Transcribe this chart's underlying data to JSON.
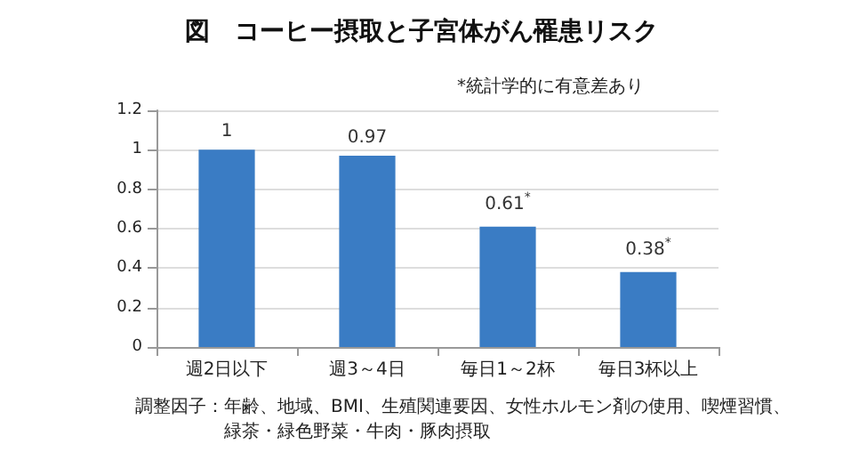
{
  "chart_data": {
    "type": "bar",
    "title": "図　コーヒー摂取と子宮体がん罹患リスク",
    "categories": [
      "週2日以下",
      "週3～4日",
      "毎日1～2杯",
      "毎日3杯以上"
    ],
    "values": [
      1,
      0.97,
      0.61,
      0.38
    ],
    "value_labels": [
      "1",
      "0.97",
      "0.61$^{*}$",
      "0.38$^{*}$"
    ],
    "color": "#3a7cc4",
    "ylim": [
      0,
      1.2
    ],
    "yticks": [
      0,
      0.2,
      0.4,
      0.6,
      0.8,
      1,
      1.2
    ],
    "grid": "y",
    "annotations": [
      "*統計学的に有意差あり",
      "調整因子：年齢、地域、BMI、生殖関連要因、女性ホルモン剤の使用、喫煙習慣、",
      "緑茶・緑色野菜・牛肉・豚肉摂取"
    ]
  }
}
